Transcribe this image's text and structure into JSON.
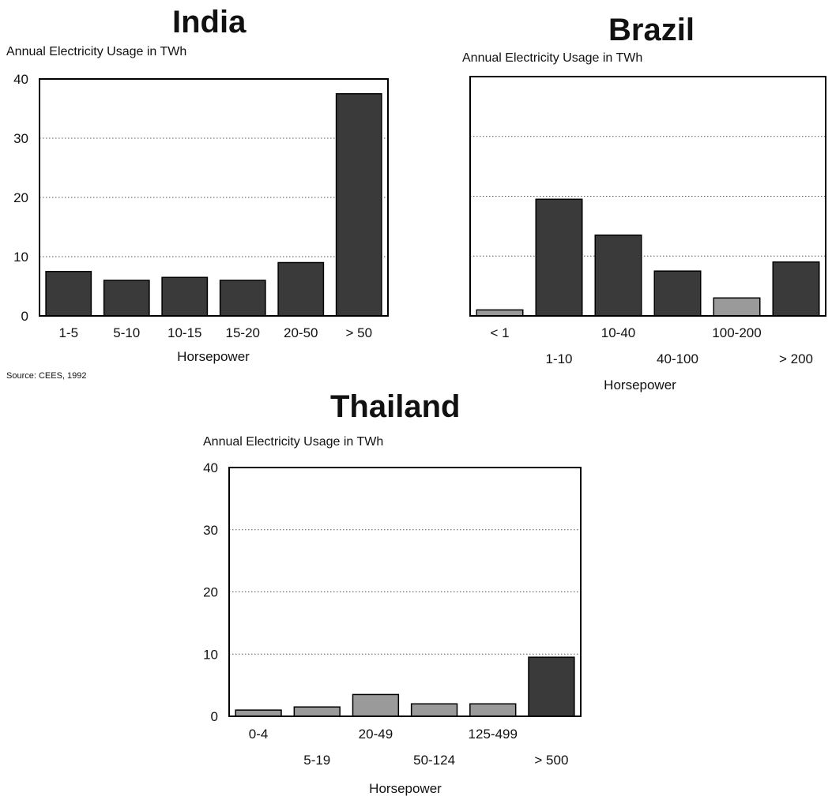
{
  "source": "Source:  CEES, 1992",
  "colors": {
    "bar_fill": "#3a3a3a",
    "bar_fill_light": "#9a9a9a",
    "axis": "#000000",
    "grid": "#555555"
  },
  "chart_data": [
    {
      "id": "india",
      "type": "bar",
      "title": "India",
      "ylabel": "Annual Electricity Usage in TWh",
      "xlabel": "Horsepower",
      "categories": [
        "1-5",
        "5-10",
        "10-15",
        "15-20",
        "20-50",
        "> 50"
      ],
      "values": [
        7.5,
        6.0,
        6.5,
        6.0,
        9.0,
        37.5
      ],
      "ylim": [
        0,
        40
      ],
      "yticks": [
        "0",
        "10",
        "20",
        "30",
        "40"
      ],
      "grid": true,
      "label_rows": "single"
    },
    {
      "id": "brazil",
      "type": "bar",
      "title": "Brazil",
      "ylabel": "Annual Electricity Usage in TWh",
      "xlabel": "Horsepower",
      "categories": [
        "< 1",
        "1-10",
        "10-40",
        "40-100",
        "100-200",
        "> 200"
      ],
      "values": [
        1.0,
        19.5,
        13.5,
        7.5,
        3.0,
        9.0
      ],
      "ylim": [
        0,
        40
      ],
      "yticks": [],
      "grid": true,
      "label_rows": "staggered"
    },
    {
      "id": "thailand",
      "type": "bar",
      "title": "Thailand",
      "ylabel": "Annual Electricity Usage in TWh",
      "xlabel": "Horsepower",
      "categories": [
        "0-4",
        "5-19",
        "20-49",
        "50-124",
        "125-499",
        "> 500"
      ],
      "values": [
        1.0,
        1.5,
        3.5,
        2.0,
        2.0,
        9.5
      ],
      "ylim": [
        0,
        40
      ],
      "yticks": [
        "0",
        "10",
        "20",
        "30",
        "40"
      ],
      "grid": true,
      "label_rows": "staggered"
    }
  ]
}
